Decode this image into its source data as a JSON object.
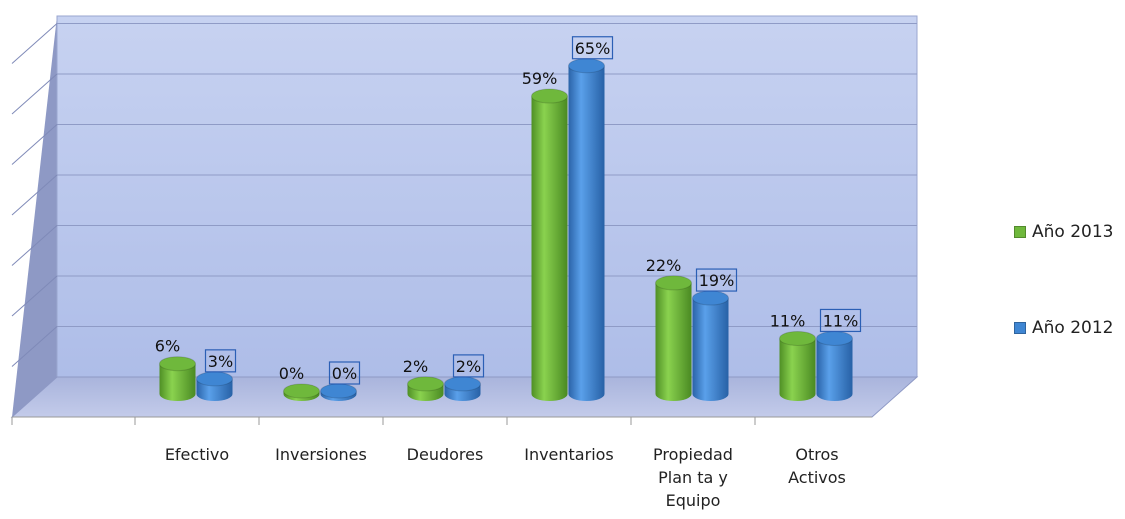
{
  "chart_data": {
    "type": "bar",
    "categories": [
      [
        "Efectivo"
      ],
      [
        "Inversiones"
      ],
      [
        "Deudores"
      ],
      [
        "Inventarios"
      ],
      [
        "Propiedad",
        "Plan ta y",
        "Equipo"
      ],
      [
        "Otros",
        "Activos"
      ]
    ],
    "series": [
      {
        "name": "Año 2013",
        "values": [
          6,
          0,
          2,
          59,
          22,
          11
        ],
        "labels": [
          "6%",
          "0%",
          "2%",
          "59%",
          "22%",
          "11%"
        ],
        "color": "#6fb83c"
      },
      {
        "name": "Año 2012",
        "values": [
          3,
          0,
          2,
          65,
          19,
          11
        ],
        "labels": [
          "3%",
          "0%",
          "2%",
          "65%",
          "19%",
          "11%"
        ],
        "color": "#3f86d3"
      }
    ],
    "ylim": [
      0,
      70
    ],
    "grid": true,
    "legend_position": "right",
    "style": "3d-cylinder",
    "title": "",
    "xlabel": "",
    "ylabel": ""
  }
}
